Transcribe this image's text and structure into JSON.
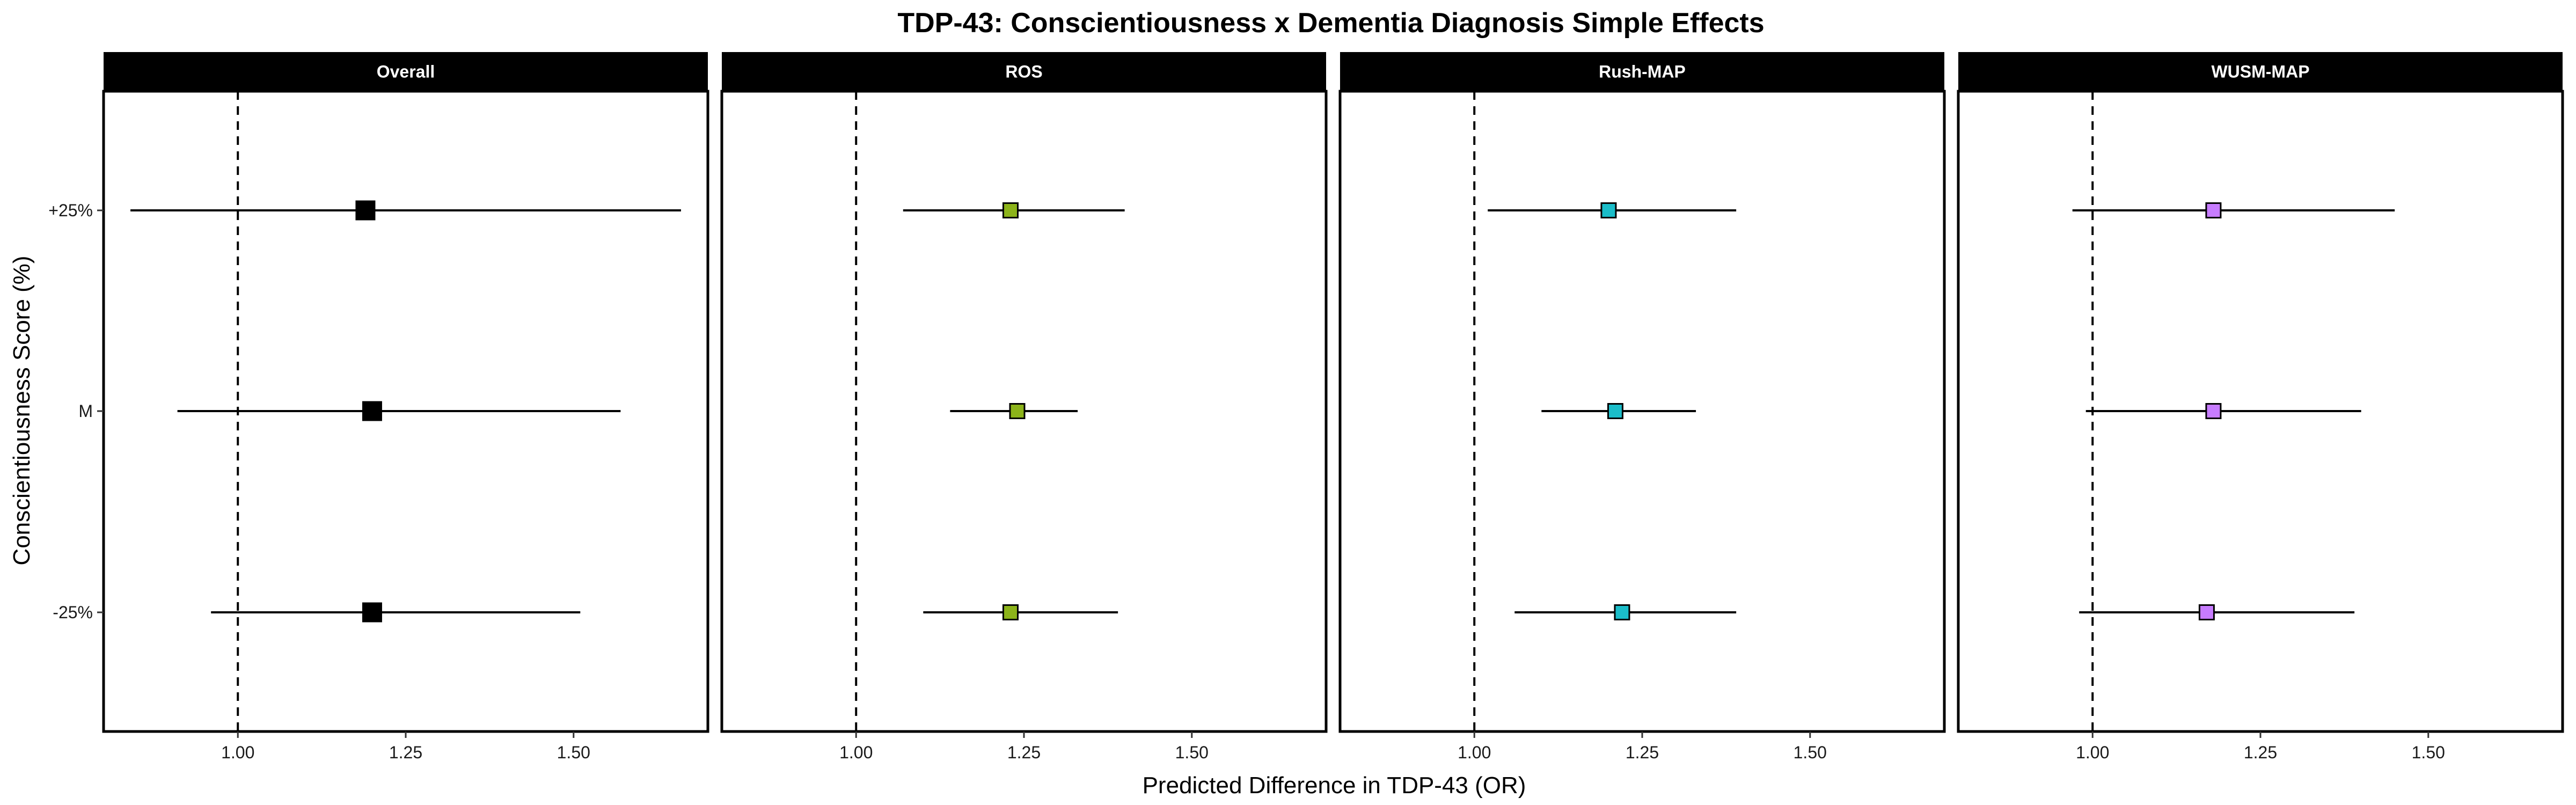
{
  "chart_data": {
    "type": "forest",
    "title": "TDP-43: Conscientiousness x Dementia Diagnosis Simple Effects",
    "xlabel": "Predicted Difference in TDP-43 (OR)",
    "ylabel": "Conscientiousness Score (%)",
    "xlim": [
      0.8,
      1.7
    ],
    "x_ticks": [
      1.0,
      1.25,
      1.5
    ],
    "x_tick_labels": [
      "1.00",
      "1.25",
      "1.50"
    ],
    "y_categories": [
      "+25%",
      "M",
      "-25%"
    ],
    "reference_line": 1.0,
    "grid": false,
    "panels": [
      {
        "name": "Overall",
        "color": "#000000",
        "points": [
          {
            "level": "+25%",
            "estimate": 1.19,
            "lower": 0.84,
            "upper": 1.66
          },
          {
            "level": "M",
            "estimate": 1.2,
            "lower": 0.91,
            "upper": 1.57
          },
          {
            "level": "-25%",
            "estimate": 1.2,
            "lower": 0.96,
            "upper": 1.51
          }
        ]
      },
      {
        "name": "ROS",
        "color": "#8CB31A",
        "points": [
          {
            "level": "+25%",
            "estimate": 1.23,
            "lower": 1.07,
            "upper": 1.4
          },
          {
            "level": "M",
            "estimate": 1.24,
            "lower": 1.14,
            "upper": 1.33
          },
          {
            "level": "-25%",
            "estimate": 1.23,
            "lower": 1.1,
            "upper": 1.39
          }
        ]
      },
      {
        "name": "Rush-MAP",
        "color": "#1BBDC9",
        "points": [
          {
            "level": "+25%",
            "estimate": 1.2,
            "lower": 1.02,
            "upper": 1.39
          },
          {
            "level": "M",
            "estimate": 1.21,
            "lower": 1.1,
            "upper": 1.33
          },
          {
            "level": "-25%",
            "estimate": 1.22,
            "lower": 1.06,
            "upper": 1.39
          }
        ]
      },
      {
        "name": "WUSM-MAP",
        "color": "#C77CFF",
        "points": [
          {
            "level": "+25%",
            "estimate": 1.18,
            "lower": 0.97,
            "upper": 1.45
          },
          {
            "level": "M",
            "estimate": 1.18,
            "lower": 0.99,
            "upper": 1.4
          },
          {
            "level": "-25%",
            "estimate": 1.17,
            "lower": 0.98,
            "upper": 1.39
          }
        ]
      }
    ]
  }
}
